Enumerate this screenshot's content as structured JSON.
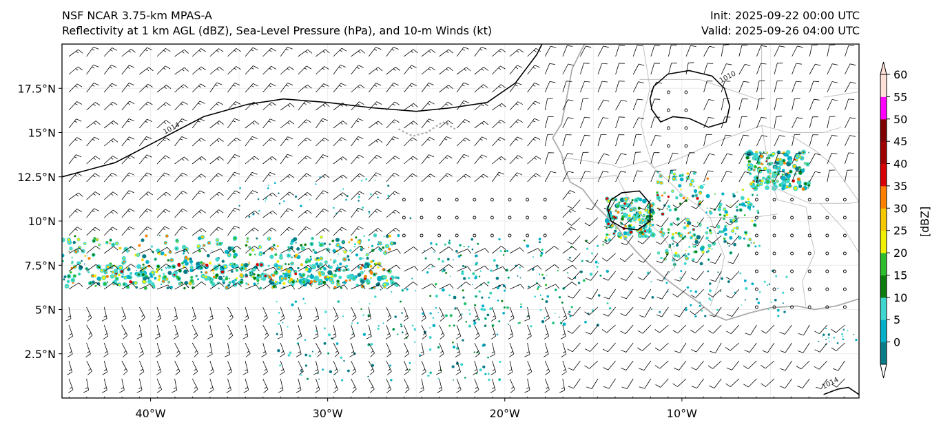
{
  "header": {
    "title_line1": "NSF NCAR 3.75-km MPAS-A",
    "title_line2": "Reflectivity at 1 km AGL (dBZ), Sea-Level Pressure (hPa), and 10-m Winds (kt)",
    "init": "Init: 2025-09-22 00:00 UTC",
    "valid": "Valid: 2025-09-26 04:00 UTC"
  },
  "map": {
    "lon_range": [
      -45,
      0
    ],
    "lat_range": [
      0,
      20
    ],
    "lon_ticks": [
      {
        "value": -40,
        "label": "40°W"
      },
      {
        "value": -30,
        "label": "30°W"
      },
      {
        "value": -20,
        "label": "20°W"
      },
      {
        "value": -10,
        "label": "10°W"
      }
    ],
    "lat_ticks": [
      {
        "value": 2.5,
        "label": "2.5°N"
      },
      {
        "value": 5,
        "label": "5°N"
      },
      {
        "value": 7.5,
        "label": "7.5°N"
      },
      {
        "value": 10,
        "label": "10°N"
      },
      {
        "value": 12.5,
        "label": "12.5°N"
      },
      {
        "value": 15,
        "label": "15°N"
      },
      {
        "value": 17.5,
        "label": "17.5°N"
      }
    ],
    "isobar_labels": [
      {
        "text": "1014",
        "lon": -39.2,
        "lat": 14.9
      },
      {
        "text": "1010",
        "lon": -7.8,
        "lat": 17.8
      },
      {
        "text": "1014",
        "lon": -2.0,
        "lat": 0.5
      }
    ]
  },
  "colorbar": {
    "label": "[dBZ]",
    "ticks": [
      "0",
      "5",
      "10",
      "15",
      "20",
      "25",
      "30",
      "35",
      "40",
      "45",
      "50",
      "55",
      "60"
    ],
    "colors": [
      "#087d87",
      "#03b0c8",
      "#3fd6cf",
      "#0c7d0c",
      "#2dbd2d",
      "#f0f000",
      "#f5c800",
      "#ff8000",
      "#d80000",
      "#a00000",
      "#800000",
      "#ff00ff",
      "#ffe0d8"
    ]
  }
}
